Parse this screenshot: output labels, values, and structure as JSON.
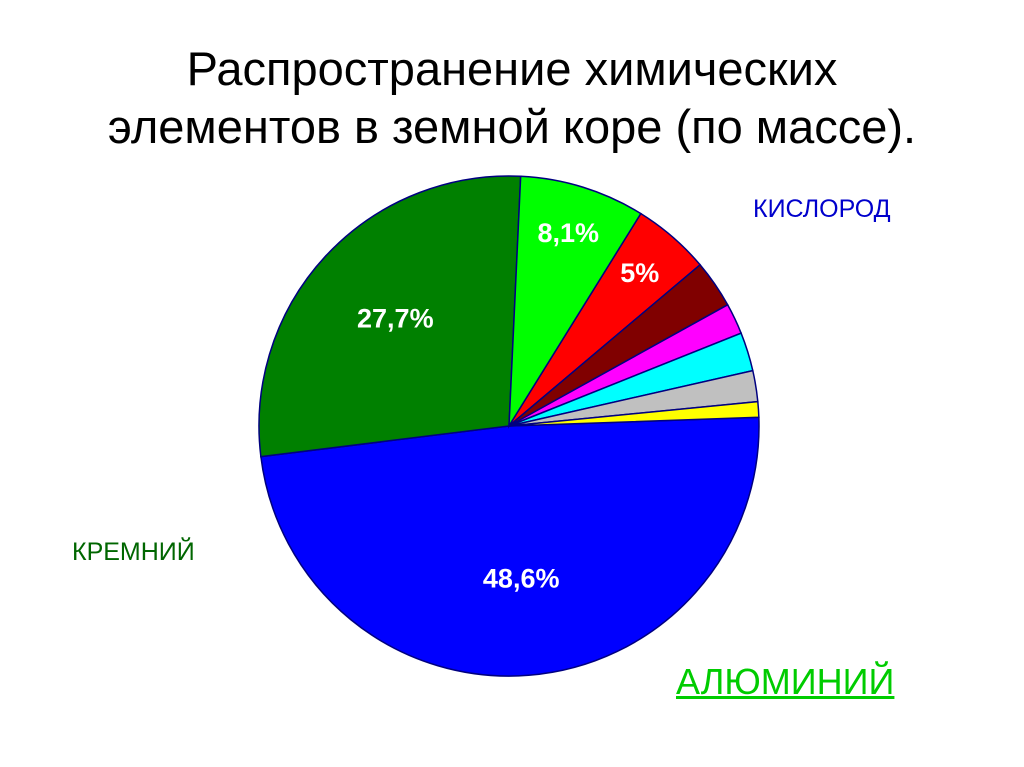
{
  "title_lines": [
    "Распространение химических",
    "элементов в земной коре (по массе)."
  ],
  "element_labels": {
    "oxygen": "КИСЛОРОД",
    "silicon": "КРЕМНИЙ",
    "aluminum": "АЛЮМИНИЙ"
  },
  "chart_data": {
    "type": "pie",
    "title": "Распространение химических элементов в земной коре (по массе).",
    "slices": [
      {
        "value": 48.6,
        "label": "48,6%",
        "color": "#0000ff"
      },
      {
        "value": 27.7,
        "label": "27,7%",
        "color": "#008000"
      },
      {
        "value": 8.1,
        "label": "8,1%",
        "color": "#00ff00"
      },
      {
        "value": 5.0,
        "label": "5%",
        "color": "#ff0000"
      },
      {
        "value": 3.1,
        "label": "",
        "color": "#800000"
      },
      {
        "value": 2.0,
        "label": "",
        "color": "#ff00ff"
      },
      {
        "value": 2.5,
        "label": "",
        "color": "#00ffff"
      },
      {
        "value": 2.0,
        "label": "",
        "color": "#c0c0c0"
      },
      {
        "value": 1.0,
        "label": "",
        "color": "#ffff00"
      }
    ],
    "start_angle_deg": -2,
    "direction": "clockwise",
    "slice_outline_color": "#000080"
  }
}
